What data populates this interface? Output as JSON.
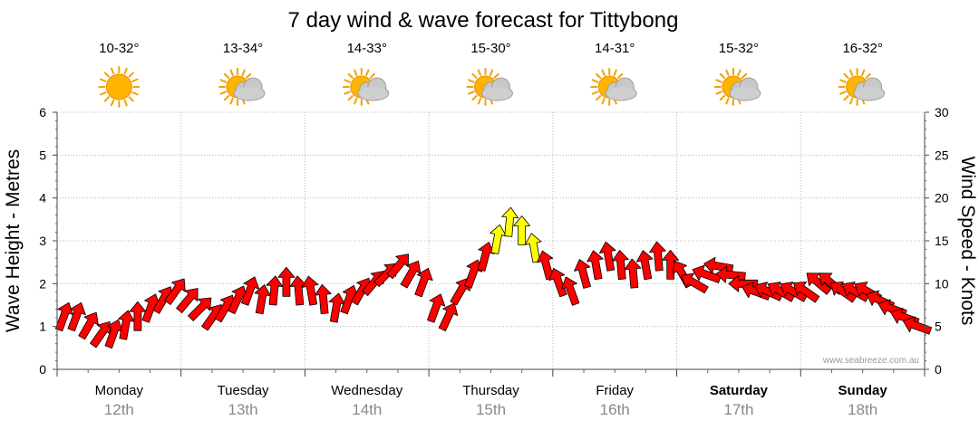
{
  "chart_data": {
    "type": "line",
    "title": "7 day wind & wave forecast for Tittybong",
    "ylabel": "Wave Height - Metres",
    "y2label": "Wind Speed - Knots",
    "ylim": [
      0,
      6
    ],
    "y2lim": [
      0,
      30
    ],
    "yticks": [
      "0",
      "1",
      "2",
      "3",
      "4",
      "5",
      "6"
    ],
    "y2ticks": [
      "0",
      "5",
      "10",
      "15",
      "20",
      "25",
      "30"
    ],
    "grid": true,
    "watermark": "www.seabreeze.com.au",
    "days": [
      {
        "name": "Monday",
        "date": "12th",
        "temp": "10-32°",
        "icon": "sun-icon",
        "bold": false
      },
      {
        "name": "Tuesday",
        "date": "13th",
        "temp": "13-34°",
        "icon": "sun-cloud-icon",
        "bold": false
      },
      {
        "name": "Wednesday",
        "date": "14th",
        "temp": "14-33°",
        "icon": "sun-cloud-icon",
        "bold": false
      },
      {
        "name": "Thursday",
        "date": "15th",
        "temp": "15-30°",
        "icon": "sun-cloud-icon",
        "bold": false
      },
      {
        "name": "Friday",
        "date": "16th",
        "temp": "14-31°",
        "icon": "sun-cloud-icon",
        "bold": false
      },
      {
        "name": "Saturday",
        "date": "17th",
        "temp": "15-32°",
        "icon": "sun-cloud-icon",
        "bold": true
      },
      {
        "name": "Sunday",
        "date": "18th",
        "temp": "16-32°",
        "icon": "sun-cloud-icon",
        "bold": true
      }
    ],
    "series": [
      {
        "name": "wind",
        "units": "knots",
        "color_normal": "#ff0000",
        "color_strong": "#ffff00",
        "strong_threshold": 14,
        "x_days": [
          0.05,
          0.15,
          0.25,
          0.35,
          0.45,
          0.55,
          0.65,
          0.75,
          0.85,
          0.95,
          1.05,
          1.15,
          1.25,
          1.35,
          1.45,
          1.55,
          1.65,
          1.75,
          1.85,
          1.95,
          2.05,
          2.15,
          2.25,
          2.35,
          2.45,
          2.55,
          2.65,
          2.75,
          2.85,
          2.95,
          3.05,
          3.15,
          3.25,
          3.35,
          3.45,
          3.55,
          3.65,
          3.75,
          3.85,
          3.95,
          4.05,
          4.15,
          4.25,
          4.35,
          4.45,
          4.55,
          4.65,
          4.75,
          4.85,
          4.95,
          5.05,
          5.15,
          5.25,
          5.35,
          5.45,
          5.55,
          5.65,
          5.75,
          5.85,
          5.95,
          6.05,
          6.15,
          6.25,
          6.35,
          6.45,
          6.55,
          6.65,
          6.75,
          6.85,
          6.95
        ],
        "speed": [
          6,
          6,
          5,
          4,
          4,
          5,
          6,
          7,
          8,
          9,
          8,
          7,
          6,
          7,
          8,
          9,
          8,
          9,
          10,
          9,
          9,
          8,
          7,
          8,
          9,
          10,
          11,
          12,
          11,
          10,
          7,
          6,
          9,
          11,
          13,
          15,
          17,
          16,
          14,
          12,
          10,
          9,
          11,
          12,
          13,
          12,
          11,
          12,
          13,
          12,
          11,
          10,
          11,
          12,
          11,
          10,
          9,
          9,
          9,
          9,
          9,
          10,
          10,
          9,
          9,
          9,
          8,
          7,
          6,
          5
        ],
        "direction_deg": [
          200,
          200,
          210,
          215,
          200,
          190,
          180,
          200,
          210,
          215,
          220,
          225,
          215,
          210,
          205,
          200,
          190,
          185,
          180,
          175,
          170,
          175,
          190,
          200,
          210,
          220,
          225,
          220,
          210,
          200,
          200,
          205,
          210,
          200,
          195,
          190,
          185,
          180,
          170,
          165,
          160,
          160,
          165,
          170,
          170,
          175,
          175,
          170,
          175,
          180,
          150,
          120,
          110,
          100,
          95,
          90,
          110,
          115,
          120,
          120,
          125,
          130,
          130,
          125,
          120,
          120,
          115,
          110,
          110,
          110
        ]
      }
    ]
  }
}
